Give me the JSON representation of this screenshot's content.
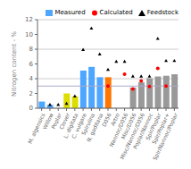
{
  "chart_data": {
    "type": "bar",
    "categories": [
      "M. algensics",
      "Willow",
      "Poplar",
      "Clover",
      "L. digitata",
      "C. vulgare",
      "Spirulina",
      "N. gaditana",
      "D056",
      "Artro",
      "Nannoc/D056",
      "Misc/D056",
      "Misc/Nannoc/D056",
      "Poplar/Nannoc",
      "Spir/Poplar",
      "Spir/Poplar+",
      "Spir/Nannoc/Poplar"
    ],
    "series": [
      {
        "name": "Measured",
        "type": "bar",
        "color": "#4da6ff",
        "colors": [
          "#4da6ff",
          "#4da6ff",
          "#33cc33",
          "#dddd00",
          "#dddd00",
          "#4da6ff",
          "#4da6ff",
          "#4da6ff",
          "#ff7700",
          "#ff7700",
          "#999999",
          "#999999",
          "#999999",
          "#999999",
          "#999999",
          "#999999",
          "#999999"
        ],
        "values": [
          0.9,
          0.45,
          null,
          2.0,
          1.6,
          5.1,
          5.6,
          4.2,
          4.2,
          null,
          null,
          2.8,
          3.5,
          4.05,
          4.3,
          4.4,
          4.6
        ]
      },
      {
        "name": "Calculated",
        "type": "scatter",
        "marker": "circle",
        "color": "#ff0000",
        "values": [
          null,
          null,
          null,
          null,
          null,
          null,
          null,
          null,
          3.0,
          null,
          4.6,
          2.6,
          3.7,
          2.95,
          5.4,
          3.0,
          null
        ]
      },
      {
        "name": "Feedstock",
        "type": "scatter",
        "marker": "triangle",
        "color": "#000000",
        "values": [
          null,
          0.45,
          0.45,
          0.6,
          1.6,
          7.9,
          10.8,
          7.3,
          5.2,
          6.3,
          6.3,
          4.3,
          4.3,
          4.3,
          9.4,
          6.4,
          6.4
        ]
      }
    ],
    "hline": {
      "y": 3.0,
      "color": "#aaaacc"
    },
    "ylabel": "Nitrogen content - %",
    "ylim": [
      0,
      12
    ],
    "yticks": [
      0,
      2,
      4,
      6,
      8,
      10,
      12
    ],
    "grid": true,
    "legend": "upper right"
  }
}
